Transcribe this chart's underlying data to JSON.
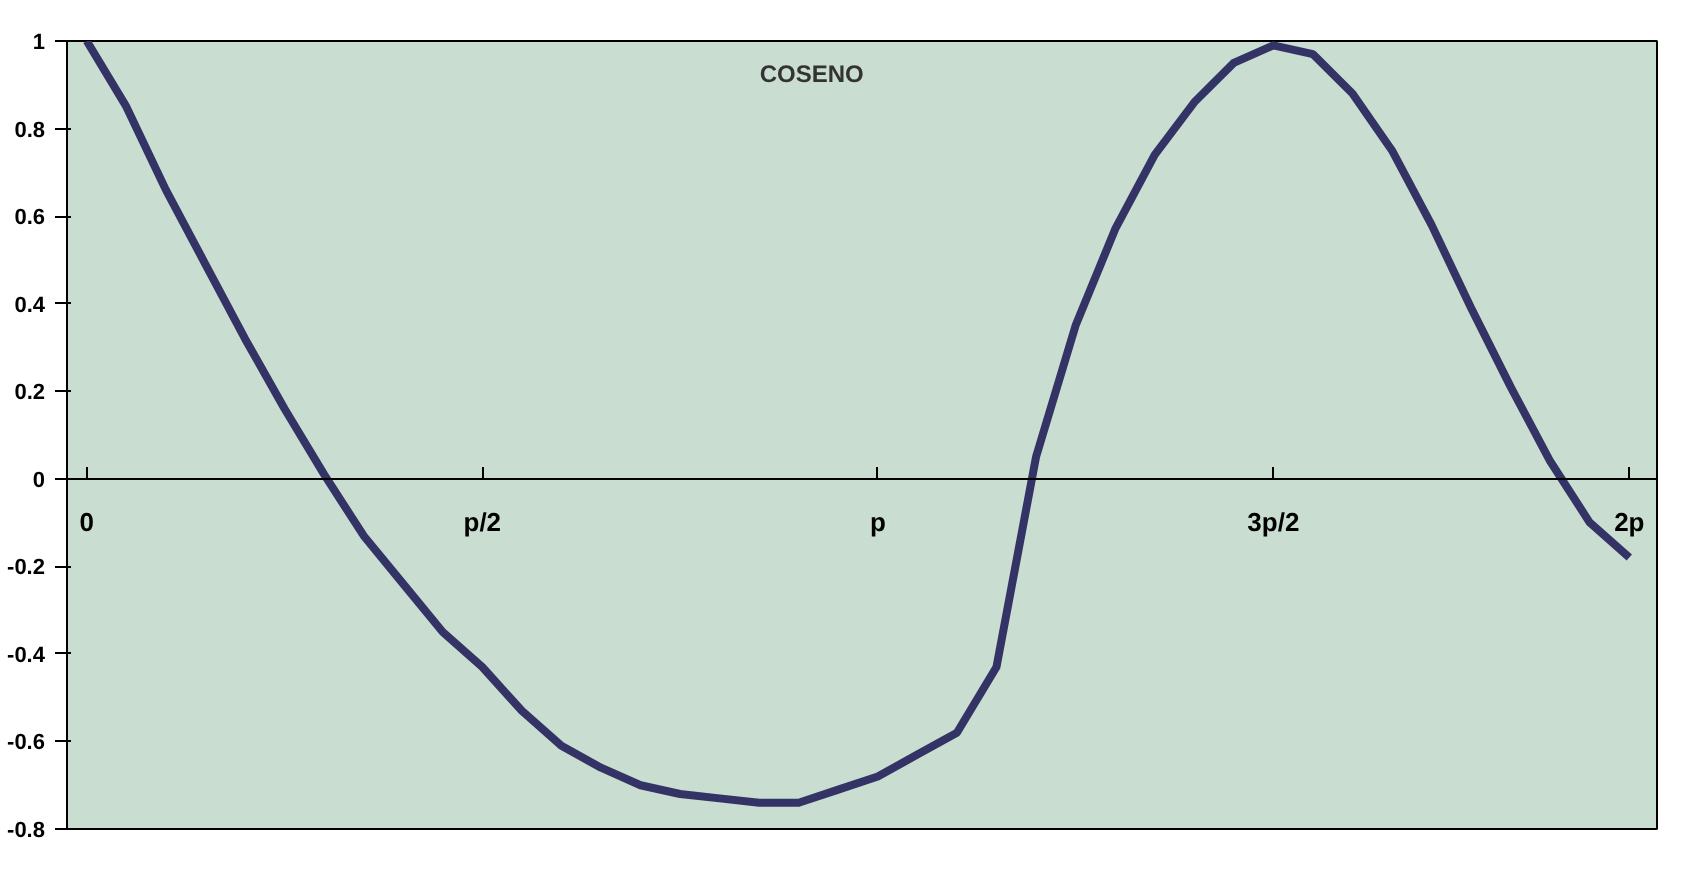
{
  "chart_data": {
    "type": "line",
    "title": "COSENO",
    "categories": [
      "0",
      null,
      null,
      null,
      null,
      null,
      null,
      null,
      null,
      null,
      "p/2",
      null,
      null,
      null,
      null,
      null,
      null,
      null,
      null,
      null,
      "p",
      null,
      null,
      null,
      null,
      null,
      null,
      null,
      null,
      null,
      "3p/2",
      null,
      null,
      null,
      null,
      null,
      null,
      null,
      null,
      "2p"
    ],
    "series": [
      {
        "color": "#333366",
        "values": [
          1.0,
          0.85,
          0.66,
          0.49,
          0.32,
          0.16,
          0.01,
          -0.13,
          -0.24,
          -0.35,
          -0.43,
          -0.53,
          -0.61,
          -0.66,
          -0.7,
          -0.72,
          -0.73,
          -0.74,
          -0.74,
          -0.71,
          -0.68,
          -0.63,
          -0.58,
          -0.43,
          0.05,
          0.35,
          0.57,
          0.74,
          0.86,
          0.95,
          0.99,
          0.97,
          0.88,
          0.75,
          0.58,
          0.39,
          0.21,
          0.04,
          -0.1,
          -0.18
        ]
      }
    ],
    "ylim": [
      -0.8,
      1
    ],
    "yticks": [
      -0.8,
      -0.6,
      -0.4,
      -0.2,
      0,
      0.2,
      0.4,
      0.6,
      0.8,
      1
    ],
    "grid": false,
    "marker": "none",
    "line_style": "solid"
  }
}
